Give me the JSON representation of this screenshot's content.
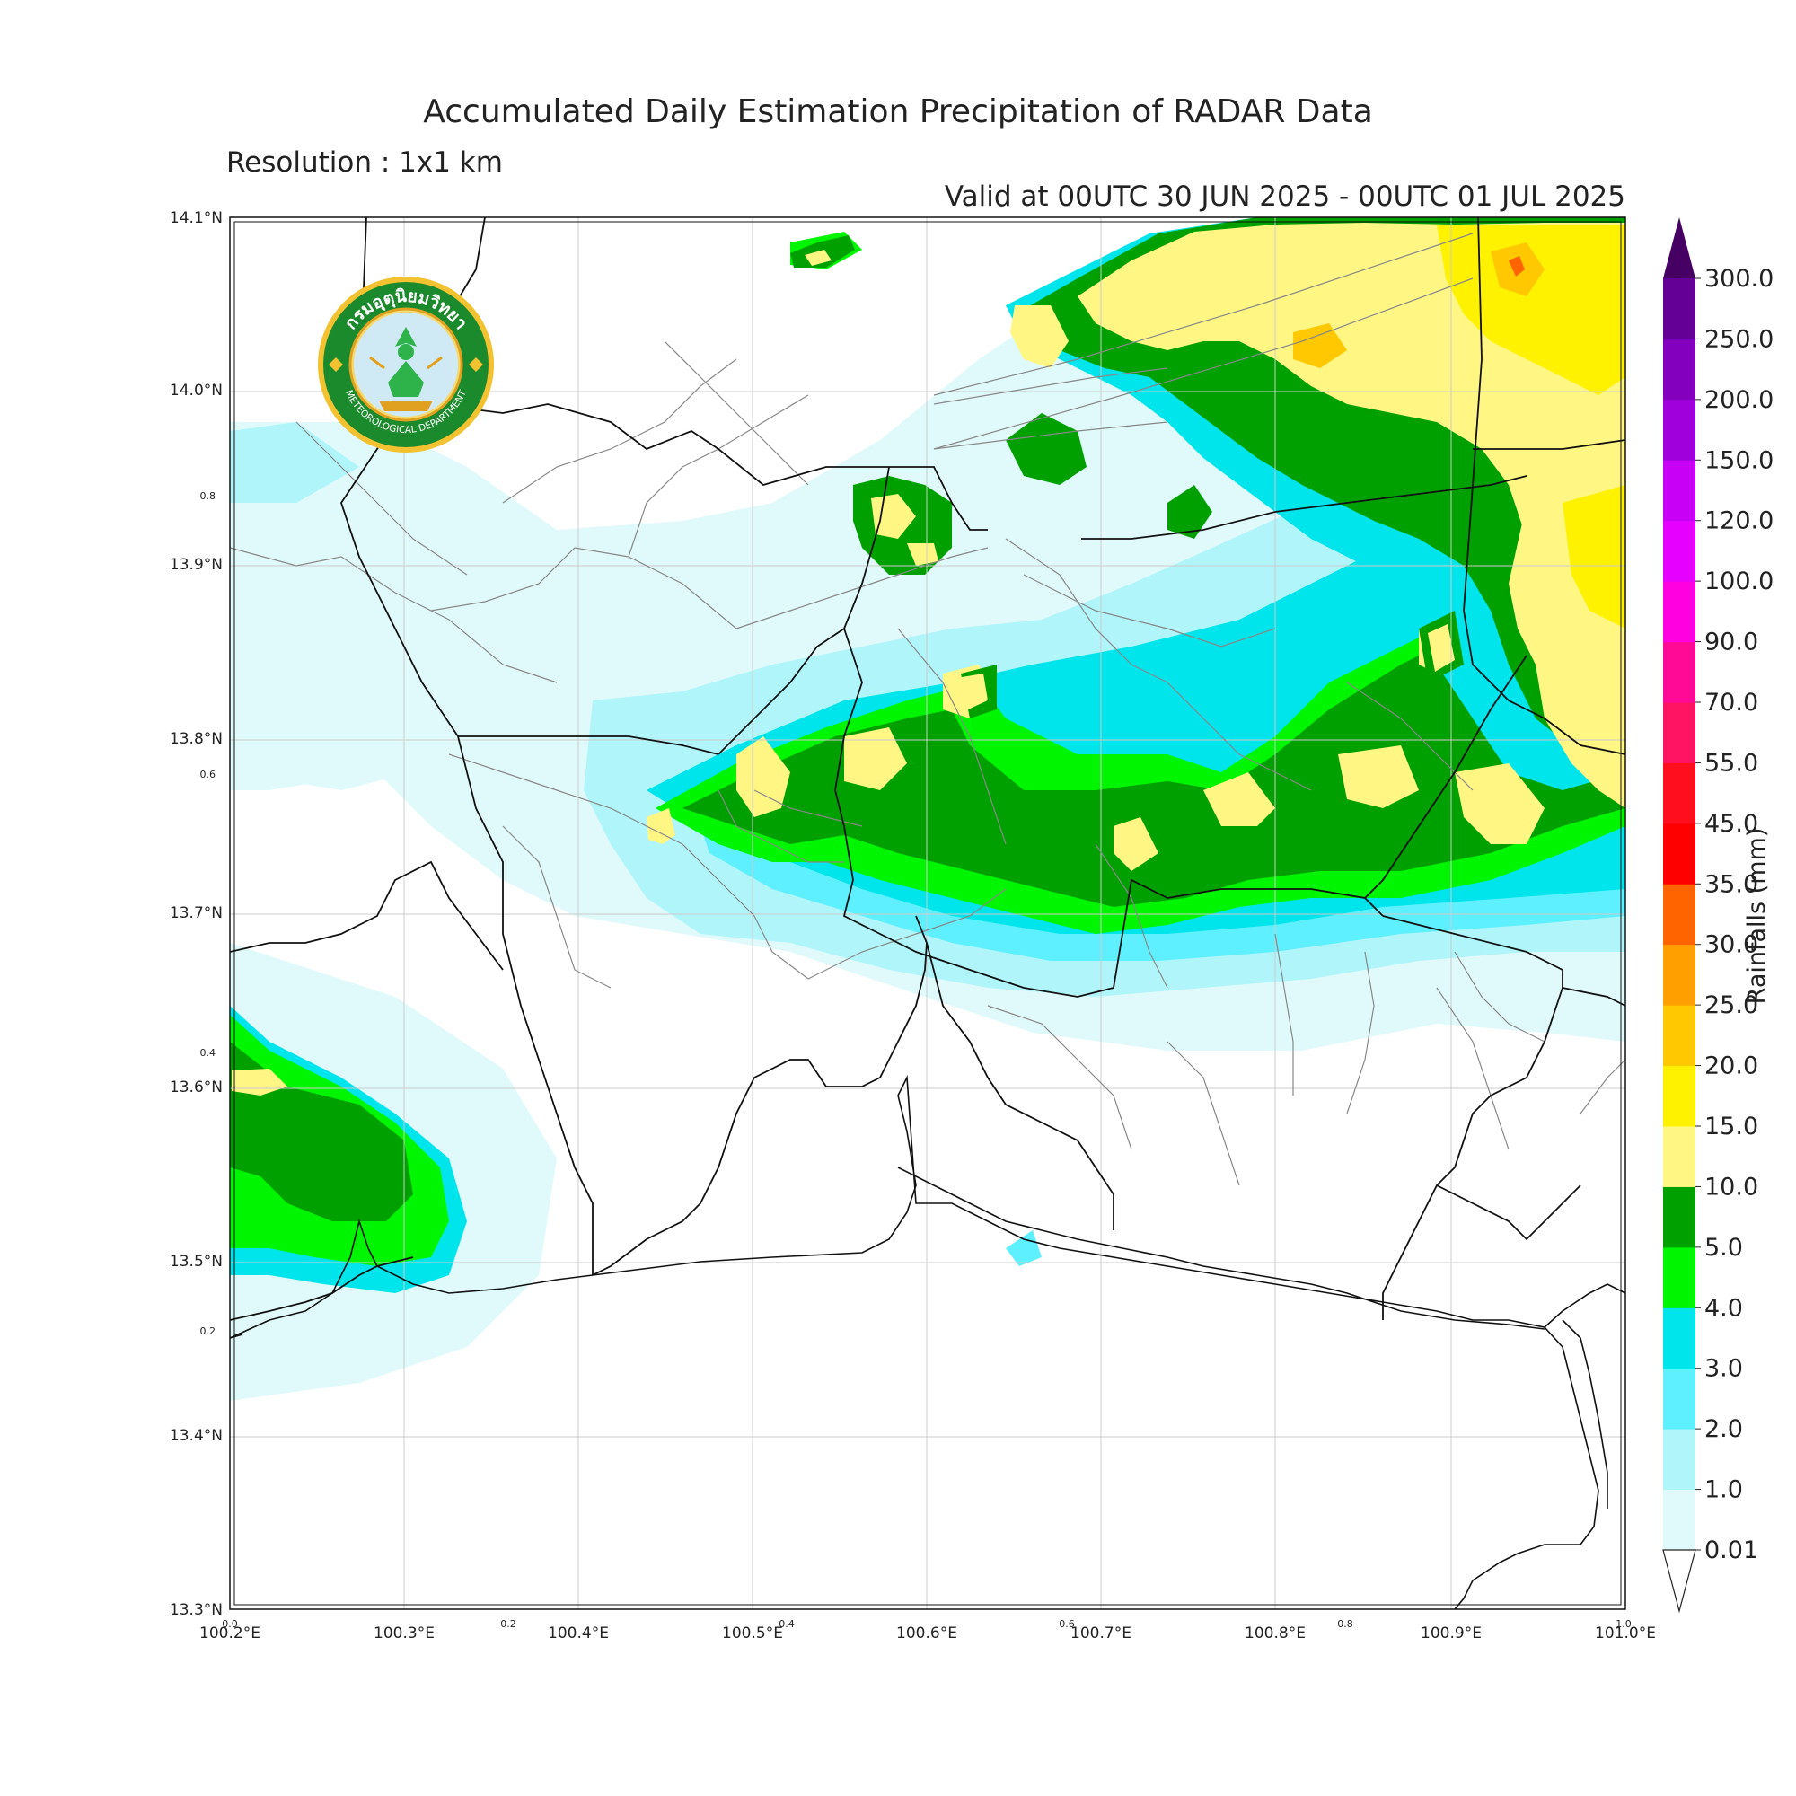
{
  "title": "Accumulated Daily Estimation Precipitation of RADAR Data",
  "subtitle": "Resolution : 1x1 km",
  "valid_time": "Valid at 00UTC 30 JUN 2025 - 00UTC 01 JUL 2025",
  "logo": {
    "text_top": "กรมอุตุนิยมวิทยา",
    "text_bottom": "METEOROLOGICAL DEPARTMENT",
    "icon": "thai-meteorological-department-seal-icon"
  },
  "colorbar": {
    "label": "Rainfalls (mm)",
    "levels": [
      "0.01",
      "1.0",
      "2.0",
      "3.0",
      "4.0",
      "5.0",
      "10.0",
      "15.0",
      "20.0",
      "25.0",
      "30.0",
      "35.0",
      "45.0",
      "55.0",
      "70.0",
      "90.0",
      "100.0",
      "120.0",
      "150.0",
      "200.0",
      "250.0",
      "300.0"
    ],
    "colors": [
      "#e0fafc",
      "#aff5fa",
      "#5ff0ff",
      "#00e5ec",
      "#00f500",
      "#00a000",
      "#fff684",
      "#fff200",
      "#ffc800",
      "#ffa000",
      "#ff6400",
      "#ff0000",
      "#ff0f1e",
      "#ff1464",
      "#ff0a96",
      "#ff00e0",
      "#e600ff",
      "#c800f5",
      "#a000dc",
      "#8200be",
      "#640096"
    ],
    "over_color": "#460064",
    "under_color": "#ffffff"
  },
  "axes": {
    "lon_labels": [
      "100.2°E",
      "100.3°E",
      "100.4°E",
      "100.5°E",
      "100.6°E",
      "100.7°E",
      "100.8°E",
      "100.9°E",
      "101.0°E"
    ],
    "lat_labels": [
      "13.3°N",
      "13.4°N",
      "13.5°N",
      "13.6°N",
      "13.7°N",
      "13.8°N",
      "13.9°N",
      "14.0°N",
      "14.1°N"
    ],
    "overlay_ticks": [
      "0.0",
      "0.2",
      "0.4",
      "0.6",
      "0.8",
      "1.0"
    ],
    "overlay_y_ticks": [
      "0.2",
      "0.4",
      "0.6",
      "0.8"
    ]
  },
  "chart_data": {
    "type": "heatmap",
    "xlim": [
      100.2,
      101.0
    ],
    "ylim": [
      13.3,
      14.1
    ],
    "units": "mm",
    "regions": [
      {
        "name": "",
        "lon": [
          100.85,
          101.0
        ],
        "lat": [
          13.95,
          14.1
        ],
        "class": "10.0-20.0"
      },
      {
        "name": "",
        "lon": [
          100.5,
          100.82
        ],
        "lat": [
          13.7,
          13.85
        ],
        "class": "5.0-15.0"
      },
      {
        "name": "",
        "lon": [
          100.2,
          100.33
        ],
        "lat": [
          13.48,
          13.62
        ],
        "class": "5.0-10.0"
      }
    ]
  }
}
